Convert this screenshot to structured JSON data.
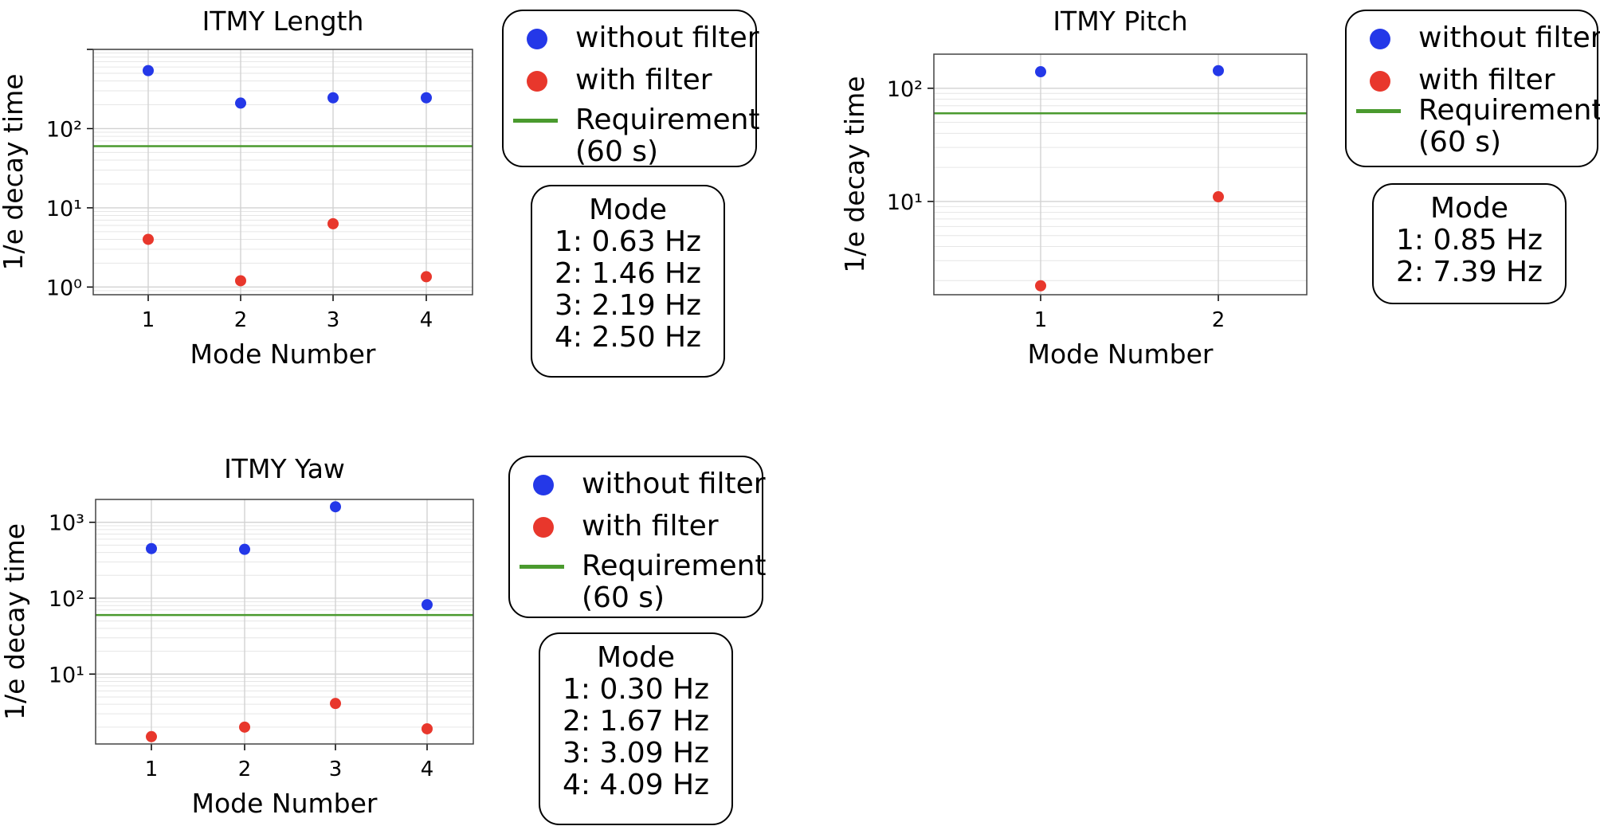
{
  "legend": {
    "without_filter": "without filter",
    "with_filter": "with filter",
    "requirement_line1": "Requirement",
    "requirement_line2": "(60 s)"
  },
  "colors": {
    "without_filter": "#2438e8",
    "with_filter": "#e8372c",
    "requirement": "#4a9a2e"
  },
  "chart_data": [
    {
      "type": "scatter",
      "title": "ITMY Length",
      "xlabel": "Mode Number",
      "ylabel": "1/e decay time",
      "yscale": "log",
      "categories": [
        "1",
        "2",
        "3",
        "4"
      ],
      "ylim": [
        0.8,
        1000
      ],
      "ytick_labels": [
        "10⁰",
        "10¹",
        "10²"
      ],
      "grid": true,
      "series": [
        {
          "name": "without filter",
          "values": [
            540,
            210,
            245,
            245
          ]
        },
        {
          "name": "with filter",
          "values": [
            4.0,
            1.2,
            6.3,
            1.35
          ]
        }
      ],
      "requirement": 60,
      "modes_title": "Mode",
      "modes": [
        "1: 0.63 Hz",
        "2: 1.46 Hz",
        "3: 2.19 Hz",
        "4: 2.50 Hz"
      ]
    },
    {
      "type": "scatter",
      "title": "ITMY Pitch",
      "xlabel": "Mode Number",
      "ylabel": "1/e decay time",
      "yscale": "log",
      "categories": [
        "1",
        "2"
      ],
      "ylim": [
        1.5,
        200
      ],
      "ytick_labels": [
        "10¹",
        "10²"
      ],
      "grid": true,
      "series": [
        {
          "name": "without filter",
          "values": [
            140,
            143
          ]
        },
        {
          "name": "with filter",
          "values": [
            1.8,
            11
          ]
        }
      ],
      "requirement": 60,
      "modes_title": "Mode",
      "modes": [
        "1: 0.85 Hz",
        "2: 7.39 Hz"
      ]
    },
    {
      "type": "scatter",
      "title": "ITMY Yaw",
      "xlabel": "Mode Number",
      "ylabel": "1/e decay time",
      "yscale": "log",
      "categories": [
        "1",
        "2",
        "3",
        "4"
      ],
      "ylim": [
        1.2,
        2000
      ],
      "ytick_labels": [
        "10¹",
        "10²",
        "10³"
      ],
      "grid": true,
      "series": [
        {
          "name": "without filter",
          "values": [
            450,
            440,
            1600,
            82
          ]
        },
        {
          "name": "with filter",
          "values": [
            1.5,
            2.0,
            4.1,
            1.9
          ]
        }
      ],
      "requirement": 60,
      "modes_title": "Mode",
      "modes": [
        "1: 0.30 Hz",
        "2: 1.67 Hz",
        "3: 3.09 Hz",
        "4: 4.09 Hz"
      ]
    }
  ]
}
